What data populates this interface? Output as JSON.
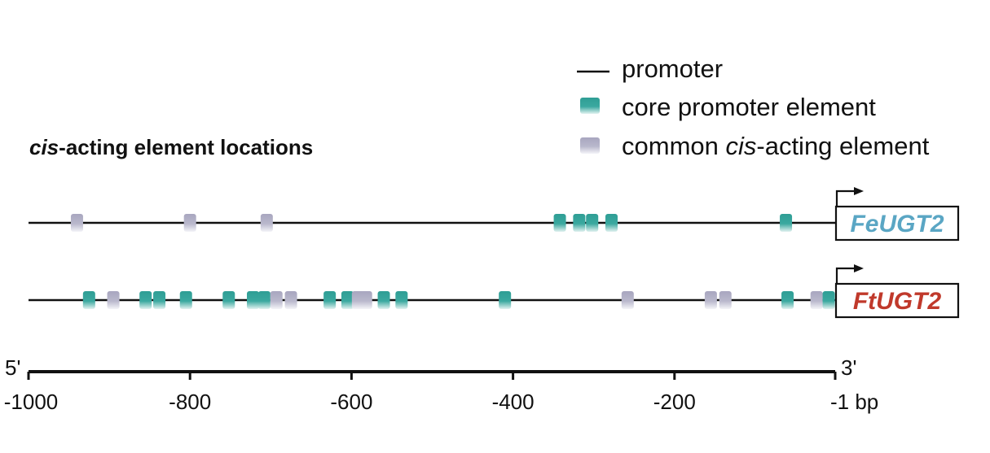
{
  "title": {
    "prefix": "cis",
    "rest": "-acting element locations"
  },
  "legend": {
    "promoter": "promoter",
    "core": "core promoter element",
    "common_prefix": "common ",
    "common_italic": "cis",
    "common_suffix": "-acting element"
  },
  "colors": {
    "core": "#2f9e95",
    "core_light": "#d4ecea",
    "common": "#a8a6bf",
    "common_light": "#f1f1f6",
    "feugt2": "#5aa6c4",
    "ftugt2": "#c0392b"
  },
  "axis": {
    "five_prime": "5'",
    "three_prime": "3'",
    "ticks": [
      -1000,
      -800,
      -600,
      -400,
      -200,
      -1
    ],
    "tick_labels": [
      "-1000",
      "-800",
      "-600",
      "-400",
      "-200",
      "-1 bp"
    ],
    "min": -1000,
    "max": -1
  },
  "tracks": [
    {
      "gene": "FeUGT2",
      "color_key": "feugt2",
      "elements": [
        {
          "pos": -940,
          "type": "common"
        },
        {
          "pos": -800,
          "type": "common"
        },
        {
          "pos": -705,
          "type": "common"
        },
        {
          "pos": -342,
          "type": "core"
        },
        {
          "pos": -318,
          "type": "core"
        },
        {
          "pos": -302,
          "type": "core"
        },
        {
          "pos": -278,
          "type": "core"
        },
        {
          "pos": -62,
          "type": "core"
        }
      ]
    },
    {
      "gene": "FtUGT2",
      "color_key": "ftugt2",
      "elements": [
        {
          "pos": -925,
          "type": "core"
        },
        {
          "pos": -895,
          "type": "common"
        },
        {
          "pos": -855,
          "type": "core"
        },
        {
          "pos": -838,
          "type": "core"
        },
        {
          "pos": -805,
          "type": "core"
        },
        {
          "pos": -752,
          "type": "core"
        },
        {
          "pos": -722,
          "type": "core"
        },
        {
          "pos": -708,
          "type": "core"
        },
        {
          "pos": -693,
          "type": "common"
        },
        {
          "pos": -675,
          "type": "common"
        },
        {
          "pos": -627,
          "type": "core"
        },
        {
          "pos": -605,
          "type": "core"
        },
        {
          "pos": -592,
          "type": "common"
        },
        {
          "pos": -582,
          "type": "common"
        },
        {
          "pos": -560,
          "type": "core"
        },
        {
          "pos": -538,
          "type": "core"
        },
        {
          "pos": -410,
          "type": "core"
        },
        {
          "pos": -258,
          "type": "common"
        },
        {
          "pos": -155,
          "type": "common"
        },
        {
          "pos": -137,
          "type": "common"
        },
        {
          "pos": -60,
          "type": "core"
        },
        {
          "pos": -24,
          "type": "common"
        },
        {
          "pos": -9,
          "type": "core"
        }
      ]
    }
  ]
}
